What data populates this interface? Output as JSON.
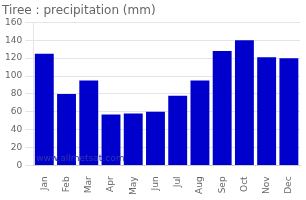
{
  "chart_data": {
    "type": "bar",
    "title": "Tiree : precipitation (mm)",
    "categories": [
      "Jan",
      "Feb",
      "Mar",
      "Apr",
      "May",
      "Jun",
      "Jul",
      "Aug",
      "Sep",
      "Oct",
      "Nov",
      "Dec"
    ],
    "values": [
      125,
      80,
      95,
      57,
      58,
      60,
      78,
      95,
      128,
      140,
      121,
      120
    ],
    "color": "#0000CC",
    "ylim": [
      0,
      160
    ],
    "yticks": [
      0,
      20,
      40,
      60,
      80,
      100,
      120,
      140,
      160
    ],
    "grid": true,
    "annotations": [
      "www.allmetsat.com"
    ]
  }
}
